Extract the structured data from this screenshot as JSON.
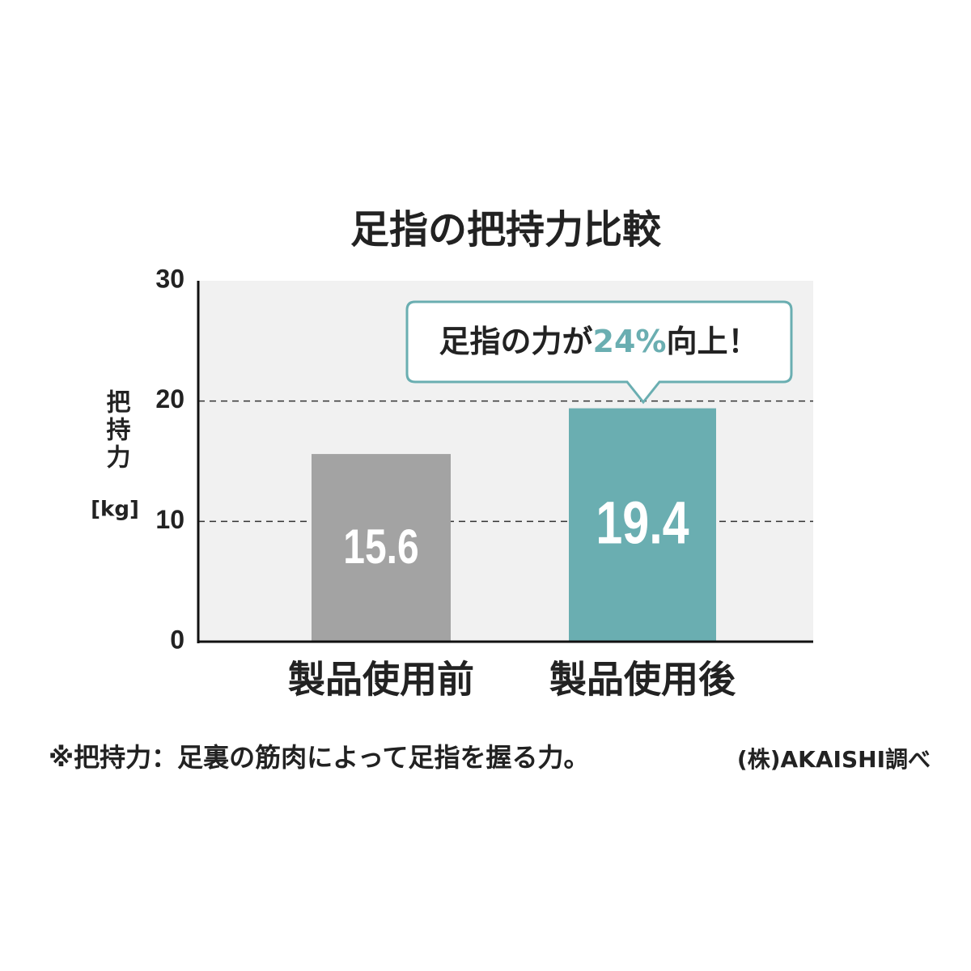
{
  "chart_data": {
    "type": "bar",
    "title": "足指の把持力比較",
    "y_label": "把持力",
    "y_unit": "[kg]",
    "categories": [
      "製品使用前",
      "製品使用後"
    ],
    "values": [
      15.6,
      19.4
    ],
    "colors": [
      "#a3a3a3",
      "#6aaeb1"
    ],
    "ylim": [
      0,
      30
    ],
    "yticks": [
      0,
      10,
      20,
      30
    ],
    "grid": true,
    "annotation": [
      "足指の力が",
      "24%",
      "向上！"
    ],
    "annotation_color": "#6aaeb1",
    "footnote": "※把持力：足裏の筋肉によって足指を握る力。",
    "source": "(株)AKAISHI調べ"
  }
}
